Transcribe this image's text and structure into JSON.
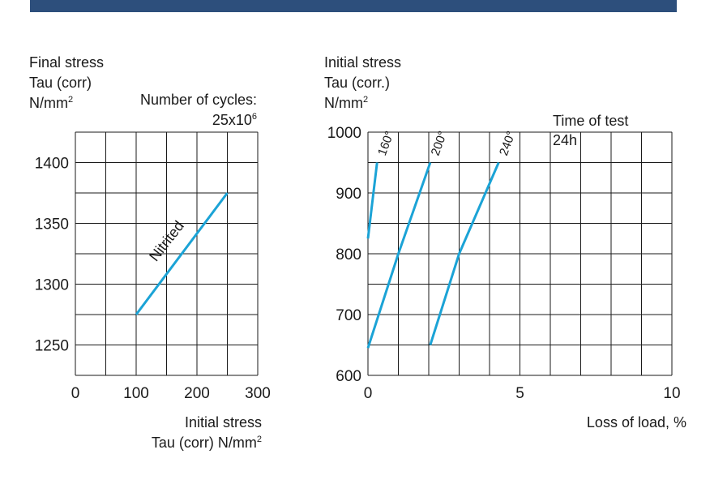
{
  "header": {
    "bar_color": "#2d4f7c"
  },
  "colors": {
    "line": "#1ba3d6",
    "grid": "#1a1a1a"
  },
  "chart_data": [
    {
      "type": "line",
      "ylabel_lines": [
        "Final stress",
        "Tau (corr)",
        "N/mm"
      ],
      "ylabel_sup": "2",
      "annotation": {
        "line1": "Number of cycles:",
        "line2_base": "25x10",
        "line2_sup": "6"
      },
      "xlabel_lines": [
        "Initial stress",
        "Tau (corr) N/mm"
      ],
      "xlabel_sup": "2",
      "xlim": [
        0,
        300
      ],
      "ylim": [
        1225,
        1425
      ],
      "xticks": [
        "0",
        "100",
        "200",
        "300"
      ],
      "yticks": [
        "1250",
        "1300",
        "1350",
        "1400"
      ],
      "series": [
        {
          "name": "Nitrited",
          "x": [
            100,
            250
          ],
          "y": [
            1275,
            1375
          ]
        }
      ]
    },
    {
      "type": "line",
      "ylabel_lines": [
        "Initial stress",
        "Tau (corr.)",
        "N/mm"
      ],
      "ylabel_sup": "2",
      "annotation": {
        "line1": "Time of test",
        "line2": "24h"
      },
      "xlabel": "Loss of load, %",
      "xlim": [
        0,
        10
      ],
      "ylim": [
        600,
        1000
      ],
      "xticks": [
        "0",
        "5",
        "10"
      ],
      "yticks": [
        "600",
        "700",
        "800",
        "900",
        "1000"
      ],
      "series": [
        {
          "name": "160°",
          "x": [
            0,
            0.3
          ],
          "y": [
            825,
            950
          ]
        },
        {
          "name": "200°",
          "x": [
            0,
            1,
            2.05
          ],
          "y": [
            645,
            800,
            950
          ]
        },
        {
          "name": "240°",
          "x": [
            2.05,
            3,
            4.3
          ],
          "y": [
            650,
            800,
            950
          ]
        }
      ]
    }
  ]
}
